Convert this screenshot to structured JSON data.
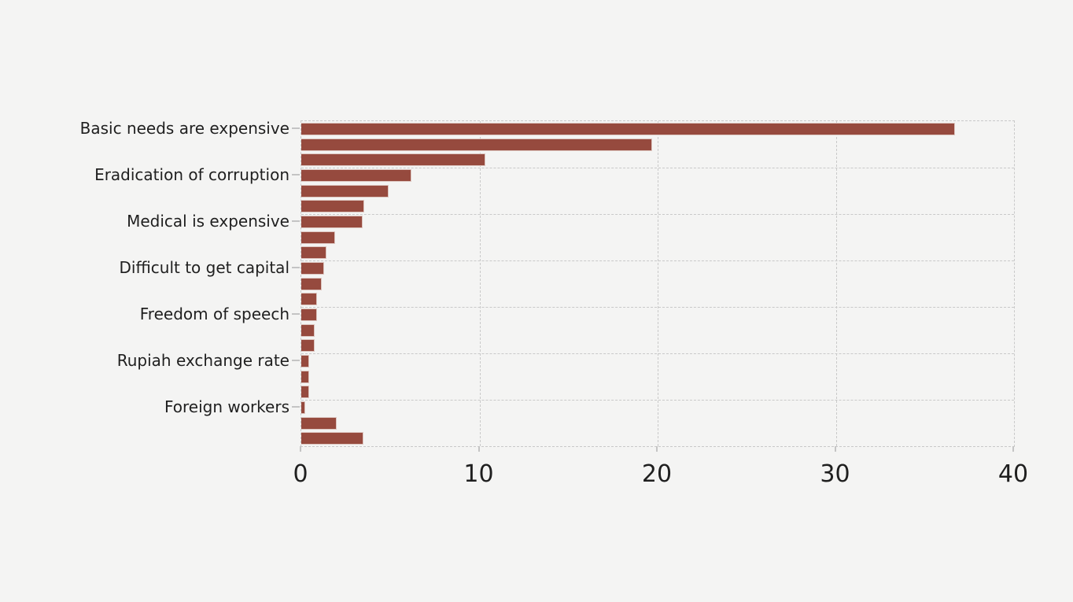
{
  "chart_data": {
    "type": "bar",
    "orientation": "horizontal",
    "title": "",
    "xlabel": "",
    "ylabel": "",
    "xlim": [
      0,
      40
    ],
    "xticks": [
      0,
      10,
      20,
      30,
      40
    ],
    "grid": "dashed",
    "legend_position": "none",
    "bar_color": "#964a3e",
    "bar_edge_color": "#ddc6c0",
    "background_color": "#f4f4f3",
    "grid_color": "#c9c9c9",
    "text_color": "#1f1f1f",
    "group_size": 3,
    "note": "21 horizontal bars; only every 3rd bar carries a visible category label; dashed horizontal gridlines separate groups of 3 bars",
    "bars": [
      {
        "label": "Basic needs are expensive",
        "value": 36.7
      },
      {
        "label": "",
        "value": 19.7
      },
      {
        "label": "",
        "value": 10.35
      },
      {
        "label": "Eradication of corruption",
        "value": 6.2
      },
      {
        "label": "",
        "value": 4.9
      },
      {
        "label": "",
        "value": 3.55
      },
      {
        "label": "Medical is expensive",
        "value": 3.45
      },
      {
        "label": "",
        "value": 1.9
      },
      {
        "label": "",
        "value": 1.4
      },
      {
        "label": "Difficult to get capital",
        "value": 1.3
      },
      {
        "label": "",
        "value": 1.15
      },
      {
        "label": "",
        "value": 0.9
      },
      {
        "label": "Freedom of speech",
        "value": 0.9
      },
      {
        "label": "",
        "value": 0.75
      },
      {
        "label": "",
        "value": 0.75
      },
      {
        "label": "Rupiah exchange rate",
        "value": 0.45
      },
      {
        "label": "",
        "value": 0.45
      },
      {
        "label": "",
        "value": 0.45
      },
      {
        "label": "Foreign workers",
        "value": 0.2
      },
      {
        "label": "",
        "value": 2.0
      },
      {
        "label": "",
        "value": 3.5
      }
    ]
  }
}
